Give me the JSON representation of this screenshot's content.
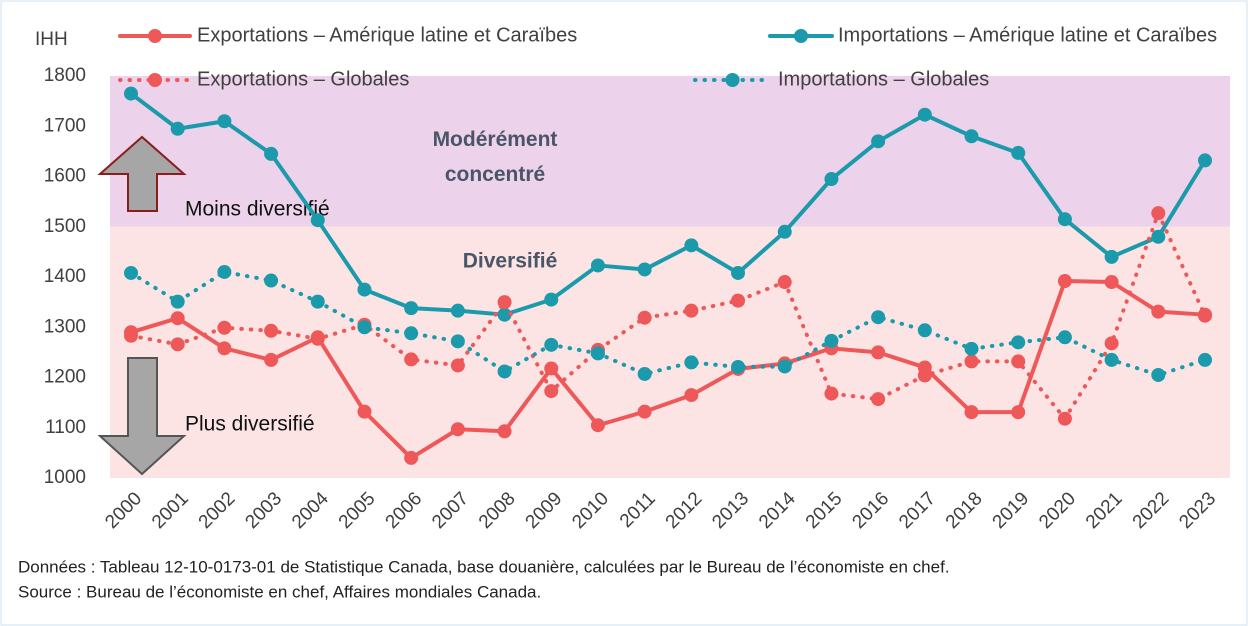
{
  "chart_data": {
    "type": "line",
    "y_label": "IHH",
    "categories": [
      "2000",
      "2001",
      "2002",
      "2003",
      "2004",
      "2005",
      "2006",
      "2007",
      "2008",
      "2009",
      "2010",
      "2011",
      "2012",
      "2013",
      "2014",
      "2015",
      "2016",
      "2017",
      "2018",
      "2019",
      "2020",
      "2021",
      "2022",
      "2023"
    ],
    "ylim": [
      1000,
      1800
    ],
    "yticks": [
      1000,
      1100,
      1200,
      1300,
      1400,
      1500,
      1600,
      1700,
      1800
    ],
    "grid": false,
    "legend": "top",
    "bands": [
      {
        "from": 1500,
        "to": 1800,
        "label": "Modérément concentré",
        "color": "#ecd2ea"
      },
      {
        "from": 1000,
        "to": 1500,
        "label": "Diversifié",
        "color": "#fce4e4"
      }
    ],
    "annotations": [
      "Moins diversifié",
      "Plus diversifié"
    ],
    "series": [
      {
        "name": "Exportations – Amérique latine et Caraïbes",
        "color": "#ef5858",
        "line_style": "solid",
        "values": [
          1290,
          1318,
          1258,
          1235,
          1280,
          1132,
          1040,
          1097,
          1093,
          1218,
          1105,
          1132,
          1165,
          1217,
          1228,
          1258,
          1250,
          1220,
          1131,
          1131,
          1392,
          1390,
          1331,
          1325
        ]
      },
      {
        "name": "Importations – Amérique latine et Caraïbes",
        "color": "#1b9aab",
        "line_style": "solid",
        "values": [
          1765,
          1695,
          1710,
          1645,
          1513,
          1375,
          1338,
          1333,
          1325,
          1355,
          1423,
          1415,
          1463,
          1408,
          1490,
          1595,
          1670,
          1723,
          1680,
          1647,
          1515,
          1440,
          1480,
          1632
        ]
      },
      {
        "name": "Exportations – Globales",
        "color": "#ef5858",
        "line_style": "dotted",
        "values": [
          1283,
          1266,
          1299,
          1293,
          1277,
          1305,
          1236,
          1224,
          1350,
          1173,
          1255,
          1319,
          1333,
          1353,
          1390,
          1168,
          1157,
          1204,
          1232,
          1232,
          1118,
          1268,
          1527,
          1323
        ]
      },
      {
        "name": "Importations – Globales",
        "color": "#1b9aab",
        "line_style": "dotted",
        "values": [
          1408,
          1351,
          1410,
          1393,
          1351,
          1300,
          1288,
          1272,
          1212,
          1265,
          1248,
          1207,
          1230,
          1221,
          1222,
          1273,
          1320,
          1294,
          1257,
          1270,
          1280,
          1235,
          1205,
          1235
        ]
      }
    ],
    "notes": [
      "Données : Tableau 12-10-0173-01 de Statistique Canada, base douanière, calculées par le Bureau de l’économiste en chef.",
      "Source : Bureau de l’économiste en chef, Affaires mondiales Canada."
    ]
  }
}
